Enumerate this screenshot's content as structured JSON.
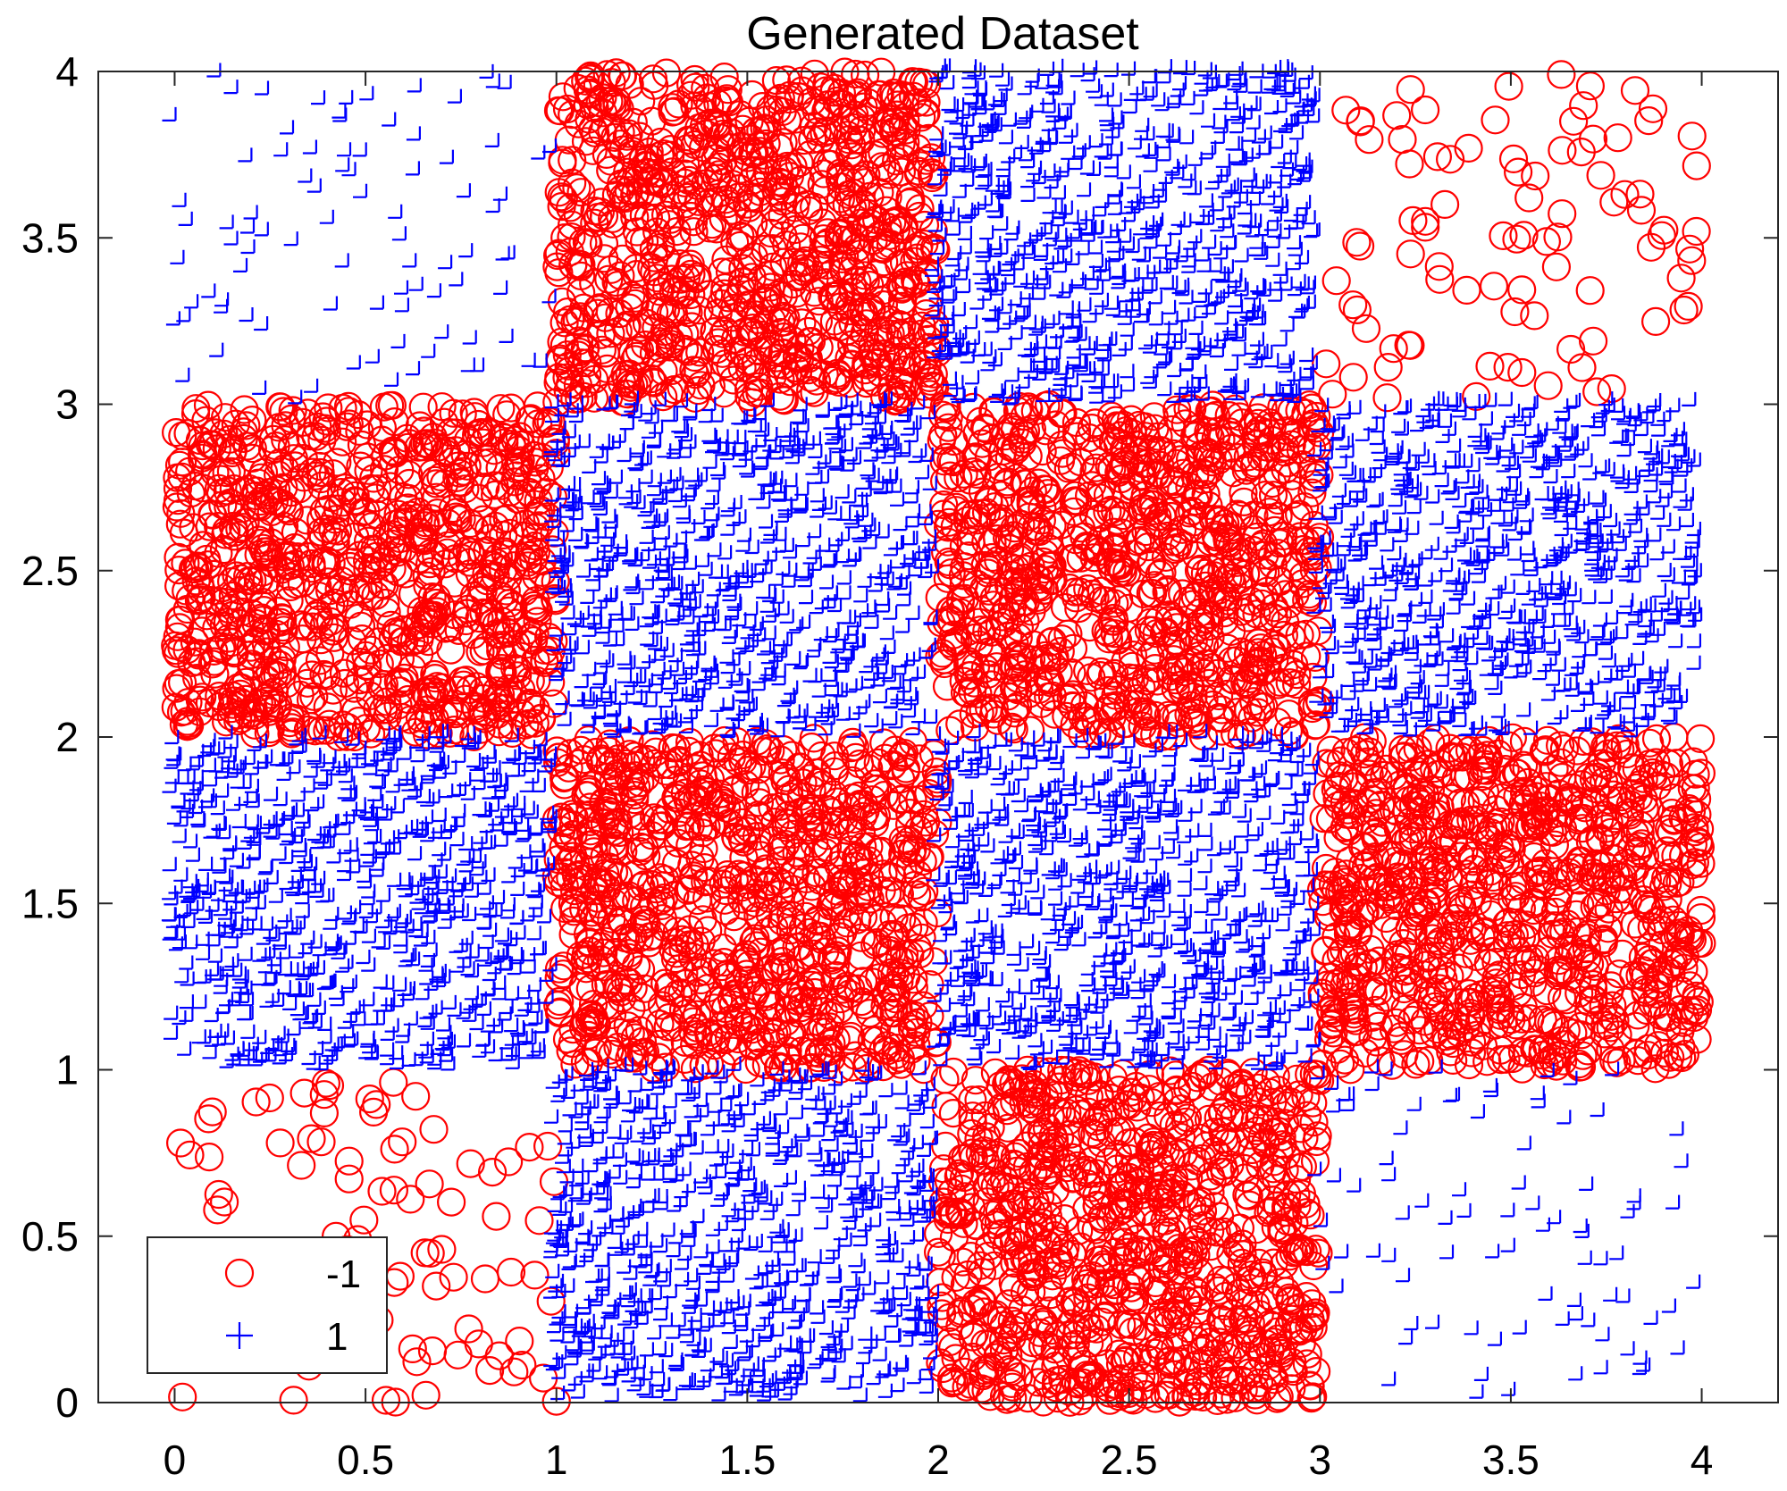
{
  "chart_data": {
    "type": "scatter",
    "title": "Generated Dataset",
    "xlabel": "",
    "ylabel": "",
    "xlim": [
      -0.2,
      4.2
    ],
    "ylim": [
      0,
      4
    ],
    "xticks": [
      "0",
      "0.5",
      "1",
      "1.5",
      "2",
      "2.5",
      "3",
      "3.5",
      "4"
    ],
    "yticks": [
      "0",
      "0.5",
      "1",
      "1.5",
      "2",
      "2.5",
      "3",
      "3.5",
      "4"
    ],
    "grid": false,
    "legend_position": "bottom-left",
    "series": [
      {
        "name": "-1",
        "marker": "circle",
        "color": "#ff0000",
        "cells": [
          {
            "x": [
              0,
              1
            ],
            "y": [
              0,
              1
            ],
            "n": 90
          },
          {
            "x": [
              2,
              3
            ],
            "y": [
              0,
              1
            ],
            "n": 900
          },
          {
            "x": [
              1,
              2
            ],
            "y": [
              1,
              2
            ],
            "n": 900
          },
          {
            "x": [
              3,
              4
            ],
            "y": [
              1,
              2
            ],
            "n": 900
          },
          {
            "x": [
              0,
              1
            ],
            "y": [
              2,
              3
            ],
            "n": 900
          },
          {
            "x": [
              2,
              3
            ],
            "y": [
              2,
              3
            ],
            "n": 900
          },
          {
            "x": [
              1,
              2
            ],
            "y": [
              3,
              4
            ],
            "n": 900
          },
          {
            "x": [
              3,
              4
            ],
            "y": [
              3,
              4
            ],
            "n": 90
          }
        ]
      },
      {
        "name": "1",
        "marker": "plus",
        "color": "#0000ff",
        "cells": [
          {
            "x": [
              1,
              2
            ],
            "y": [
              0,
              1
            ],
            "n": 900
          },
          {
            "x": [
              3,
              4
            ],
            "y": [
              0,
              1
            ],
            "n": 90
          },
          {
            "x": [
              0,
              1
            ],
            "y": [
              1,
              2
            ],
            "n": 900
          },
          {
            "x": [
              2,
              3
            ],
            "y": [
              1,
              2
            ],
            "n": 900
          },
          {
            "x": [
              1,
              2
            ],
            "y": [
              2,
              3
            ],
            "n": 900
          },
          {
            "x": [
              3,
              4
            ],
            "y": [
              2,
              3
            ],
            "n": 900
          },
          {
            "x": [
              0,
              1
            ],
            "y": [
              3,
              4
            ],
            "n": 90
          },
          {
            "x": [
              2,
              3
            ],
            "y": [
              3,
              4
            ],
            "n": 900
          }
        ]
      }
    ]
  }
}
